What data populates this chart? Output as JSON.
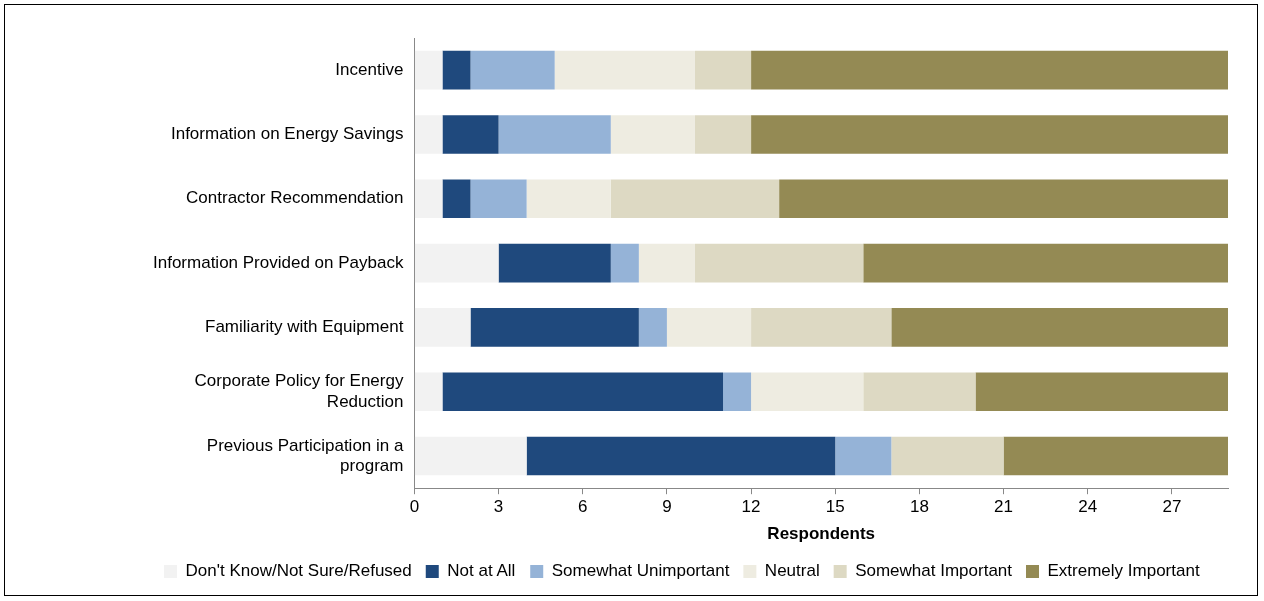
{
  "chart_data": {
    "type": "bar",
    "orientation": "horizontal",
    "stacked": true,
    "xlabel": "Respondents",
    "categories": [
      "Incentive",
      "Information on Energy Savings",
      "Contractor Recommendation",
      "Information Provided on Payback",
      "Familiarity with Equipment",
      "Corporate Policy for Energy Reduction",
      "Previous Participation in a program"
    ],
    "xlim": [
      0,
      29
    ],
    "xticks": [
      0,
      3,
      6,
      9,
      12,
      15,
      18,
      21,
      24,
      27
    ],
    "grid": false,
    "legend": "bottom",
    "series": [
      {
        "name": "Don't Know/Not Sure/Refused",
        "color": "#f2f2f2",
        "values": [
          1,
          1,
          1,
          3,
          2,
          1,
          4
        ]
      },
      {
        "name": "Not at All",
        "color": "#1f497d",
        "values": [
          1,
          2,
          1,
          4,
          6,
          10,
          11
        ]
      },
      {
        "name": "Somewhat Unimportant",
        "color": "#95b3d7",
        "values": [
          3,
          4,
          2,
          1,
          1,
          1,
          2
        ]
      },
      {
        "name": "Neutral",
        "color": "#eeece1",
        "values": [
          5,
          3,
          3,
          2,
          3,
          4,
          0
        ]
      },
      {
        "name": "Somewhat Important",
        "color": "#ddd9c3",
        "values": [
          2,
          2,
          6,
          6,
          5,
          4,
          4
        ]
      },
      {
        "name": "Extremely Important",
        "color": "#948a54",
        "values": [
          17,
          17,
          16,
          13,
          12,
          9,
          8
        ]
      }
    ]
  }
}
